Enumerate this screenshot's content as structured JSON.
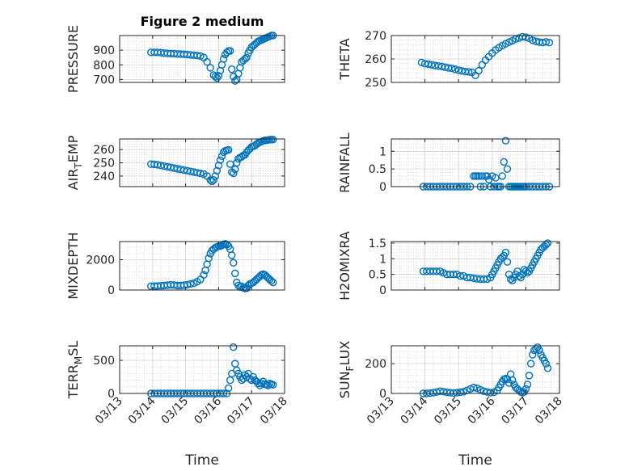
{
  "chart_data": [
    {
      "type": "scatter",
      "title": "Figure 2 medium",
      "ylabel": "PRESSURE",
      "ylabel_sub": null,
      "ylim": [
        680,
        1000
      ],
      "yticks": [
        700,
        800,
        900
      ],
      "ytick_labels": [
        "700",
        "800",
        "900"
      ],
      "xlim": [
        0,
        5
      ],
      "xticks": [
        0,
        1,
        2,
        3,
        4,
        5
      ],
      "xtick_labels": [
        "03/13",
        "03/14",
        "03/15",
        "03/16",
        "03/17",
        "03/18"
      ],
      "xlabel": "",
      "show_xticklabels": false,
      "x": [
        0.95,
        1.05,
        1.15,
        1.25,
        1.35,
        1.45,
        1.55,
        1.65,
        1.75,
        1.85,
        1.95,
        2.05,
        2.15,
        2.25,
        2.35,
        2.45,
        2.55,
        2.65,
        2.75,
        2.85,
        2.9,
        2.95,
        3.0,
        3.05,
        3.1,
        3.15,
        3.2,
        3.25,
        3.3,
        3.35,
        3.4,
        3.45,
        3.5,
        3.55,
        3.6,
        3.65,
        3.7,
        3.75,
        3.8,
        3.85,
        3.9,
        3.95,
        4.0,
        4.05,
        4.1,
        4.15,
        4.2,
        4.25,
        4.3,
        4.35,
        4.4,
        4.45,
        4.5,
        4.55,
        4.6,
        4.65
      ],
      "y": [
        885,
        885,
        885,
        883,
        880,
        878,
        877,
        876,
        874,
        873,
        872,
        870,
        868,
        866,
        864,
        860,
        850,
        820,
        780,
        730,
        720,
        710,
        725,
        760,
        800,
        840,
        870,
        885,
        895,
        895,
        770,
        720,
        690,
        700,
        740,
        780,
        820,
        830,
        840,
        850,
        880,
        900,
        920,
        930,
        940,
        950,
        960,
        965,
        970,
        975,
        980,
        985,
        990,
        995,
        1000,
        1000
      ]
    },
    {
      "type": "scatter",
      "title": "",
      "ylabel": "THETA",
      "ylabel_sub": null,
      "ylim": [
        250,
        270
      ],
      "yticks": [
        250,
        260,
        270
      ],
      "ytick_labels": [
        "250",
        "260",
        "270"
      ],
      "xlim": [
        0,
        5
      ],
      "xticks": [
        0,
        1,
        2,
        3,
        4,
        5
      ],
      "xtick_labels": [
        "03/13",
        "03/14",
        "03/15",
        "03/16",
        "03/17",
        "03/18"
      ],
      "xlabel": "",
      "show_xticklabels": false,
      "x": [
        0.9,
        1.0,
        1.1,
        1.2,
        1.3,
        1.4,
        1.5,
        1.6,
        1.7,
        1.8,
        1.9,
        2.0,
        2.1,
        2.2,
        2.3,
        2.4,
        2.5,
        2.6,
        2.7,
        2.8,
        2.9,
        3.0,
        3.1,
        3.2,
        3.3,
        3.4,
        3.5,
        3.6,
        3.7,
        3.8,
        3.9,
        4.0,
        4.1,
        4.2,
        4.3,
        4.4,
        4.5,
        4.6,
        4.7
      ],
      "y": [
        258.5,
        258,
        257.8,
        257.5,
        257.2,
        257,
        256.8,
        256.5,
        256.2,
        256,
        255.6,
        255.2,
        254.9,
        254.6,
        254.5,
        254.3,
        253,
        255,
        257.5,
        259.5,
        261,
        262.5,
        263.8,
        264.8,
        265.7,
        266.5,
        267.2,
        267.8,
        268.5,
        269,
        269.5,
        269.3,
        268.8,
        268,
        267.5,
        267.2,
        267,
        267.3,
        267
      ]
    },
    {
      "type": "scatter",
      "title": "",
      "ylabel": "AIR",
      "ylabel_sub": "T",
      "ylabel_rest": "EMP",
      "ylim": [
        232,
        268
      ],
      "yticks": [
        240,
        250,
        260
      ],
      "ytick_labels": [
        "240",
        "250",
        "260"
      ],
      "xlim": [
        0,
        5
      ],
      "xticks": [
        0,
        1,
        2,
        3,
        4,
        5
      ],
      "xtick_labels": [
        "03/13",
        "03/14",
        "03/15",
        "03/16",
        "03/17",
        "03/18"
      ],
      "xlabel": "",
      "show_xticklabels": false,
      "x": [
        0.95,
        1.05,
        1.15,
        1.25,
        1.35,
        1.45,
        1.55,
        1.65,
        1.75,
        1.85,
        1.95,
        2.05,
        2.15,
        2.25,
        2.35,
        2.45,
        2.55,
        2.65,
        2.75,
        2.8,
        2.85,
        2.9,
        2.95,
        3.0,
        3.05,
        3.1,
        3.15,
        3.2,
        3.25,
        3.3,
        3.35,
        3.4,
        3.45,
        3.5,
        3.55,
        3.6,
        3.65,
        3.7,
        3.75,
        3.8,
        3.85,
        3.9,
        3.95,
        4.0,
        4.05,
        4.1,
        4.15,
        4.2,
        4.25,
        4.3,
        4.35,
        4.4,
        4.45,
        4.5,
        4.55,
        4.6,
        4.65
      ],
      "y": [
        249,
        248.8,
        248.5,
        248,
        247.5,
        247,
        246.5,
        246,
        245.5,
        245,
        244.5,
        244,
        243.5,
        243,
        242.5,
        242,
        241.5,
        240,
        237,
        236,
        237,
        240,
        244,
        248,
        252,
        255,
        258,
        259,
        259.5,
        259.8,
        249,
        243,
        242,
        245,
        250,
        253,
        254,
        254.5,
        255.5,
        256,
        258,
        259.5,
        260.5,
        262,
        262.5,
        263,
        264,
        265,
        265.5,
        266,
        266.5,
        267,
        267,
        267.2,
        267.5,
        267.5,
        267.5
      ]
    },
    {
      "type": "scatter",
      "title": "",
      "ylabel": "RAINFALL",
      "ylabel_sub": null,
      "ylim": [
        0,
        1.35
      ],
      "yticks": [
        0,
        0.5,
        1
      ],
      "ytick_labels": [
        "0",
        "0.5",
        "1"
      ],
      "xlim": [
        0,
        5
      ],
      "xticks": [
        0,
        1,
        2,
        3,
        4,
        5
      ],
      "xtick_labels": [
        "03/13",
        "03/14",
        "03/15",
        "03/16",
        "03/17",
        "03/18"
      ],
      "xlabel": "",
      "show_xticklabels": false,
      "x": [
        0.95,
        1.05,
        1.15,
        1.25,
        1.35,
        1.45,
        1.55,
        1.65,
        1.75,
        1.85,
        1.95,
        2.05,
        2.15,
        2.25,
        2.35,
        2.45,
        2.5,
        2.55,
        2.6,
        2.65,
        2.7,
        2.75,
        2.8,
        2.85,
        2.9,
        2.95,
        3.0,
        3.05,
        3.1,
        3.15,
        3.2,
        3.25,
        3.3,
        3.35,
        3.4,
        3.45,
        3.5,
        3.55,
        3.6,
        3.65,
        3.7,
        3.75,
        3.8,
        3.85,
        3.9,
        3.95,
        4.0,
        4.1,
        4.2,
        4.3,
        4.4,
        4.5,
        4.6,
        4.7
      ],
      "y": [
        0,
        0,
        0,
        0,
        0,
        0,
        0,
        0,
        0,
        0,
        0,
        0,
        0,
        0,
        0,
        0.3,
        0.3,
        0.3,
        0.3,
        0,
        0.3,
        0,
        0.3,
        0.3,
        0.2,
        0,
        0.3,
        0,
        0.25,
        0,
        0,
        0,
        0.3,
        0.7,
        1.3,
        0.5,
        0,
        0,
        0,
        0,
        0,
        0,
        0,
        0,
        0,
        0,
        0,
        0,
        0,
        0,
        0,
        0,
        0,
        0
      ]
    },
    {
      "type": "scatter",
      "title": "",
      "ylabel": "MIXDEPTH",
      "ylabel_sub": null,
      "ylim": [
        0,
        3200
      ],
      "yticks": [
        0,
        2000
      ],
      "ytick_labels": [
        "0",
        "2000"
      ],
      "xlim": [
        0,
        5
      ],
      "xticks": [
        0,
        1,
        2,
        3,
        4,
        5
      ],
      "xtick_labels": [
        "03/13",
        "03/14",
        "03/15",
        "03/16",
        "03/17",
        "03/18"
      ],
      "xlabel": "",
      "show_xticklabels": false,
      "x": [
        0.95,
        1.05,
        1.15,
        1.25,
        1.35,
        1.45,
        1.55,
        1.65,
        1.75,
        1.85,
        1.95,
        2.05,
        2.15,
        2.25,
        2.35,
        2.45,
        2.55,
        2.6,
        2.65,
        2.7,
        2.75,
        2.8,
        2.85,
        2.9,
        2.95,
        3.0,
        3.05,
        3.1,
        3.15,
        3.2,
        3.25,
        3.3,
        3.35,
        3.4,
        3.45,
        3.5,
        3.55,
        3.6,
        3.65,
        3.7,
        3.75,
        3.8,
        3.85,
        3.9,
        3.95,
        4.0,
        4.05,
        4.1,
        4.15,
        4.2,
        4.25,
        4.3,
        4.35,
        4.4,
        4.45,
        4.5,
        4.55,
        4.6,
        4.65
      ],
      "y": [
        250,
        260,
        270,
        280,
        300,
        320,
        350,
        330,
        300,
        300,
        320,
        350,
        400,
        450,
        550,
        700,
        1000,
        1300,
        1700,
        2100,
        2400,
        2600,
        2700,
        2800,
        2850,
        2900,
        2900,
        2950,
        3000,
        3050,
        3000,
        2900,
        2700,
        2300,
        1800,
        1100,
        500,
        300,
        200,
        250,
        150,
        100,
        120,
        300,
        400,
        450,
        500,
        600,
        700,
        800,
        900,
        1000,
        1050,
        1000,
        900,
        800,
        700,
        600,
        500
      ]
    },
    {
      "type": "scatter",
      "title": "",
      "ylabel": "H2OMIXRA",
      "ylabel_sub": null,
      "ylim": [
        0,
        1.55
      ],
      "yticks": [
        0,
        0.5,
        1,
        1.5
      ],
      "ytick_labels": [
        "0",
        "0.5",
        "1",
        "1.5"
      ],
      "xlim": [
        0,
        5
      ],
      "xticks": [
        0,
        1,
        2,
        3,
        4,
        5
      ],
      "xtick_labels": [
        "03/13",
        "03/14",
        "03/15",
        "03/16",
        "03/17",
        "03/18"
      ],
      "xlabel": "",
      "show_xticklabels": false,
      "x": [
        0.95,
        1.05,
        1.15,
        1.25,
        1.35,
        1.45,
        1.55,
        1.65,
        1.75,
        1.85,
        1.95,
        2.05,
        2.15,
        2.25,
        2.35,
        2.45,
        2.55,
        2.65,
        2.75,
        2.85,
        2.95,
        3.0,
        3.05,
        3.1,
        3.15,
        3.2,
        3.25,
        3.3,
        3.35,
        3.4,
        3.45,
        3.5,
        3.55,
        3.6,
        3.65,
        3.7,
        3.75,
        3.8,
        3.85,
        3.9,
        3.95,
        4.0,
        4.05,
        4.1,
        4.15,
        4.2,
        4.25,
        4.3,
        4.35,
        4.4,
        4.45,
        4.5,
        4.55,
        4.6,
        4.65
      ],
      "y": [
        0.6,
        0.6,
        0.6,
        0.6,
        0.6,
        0.6,
        0.55,
        0.5,
        0.5,
        0.5,
        0.5,
        0.45,
        0.45,
        0.4,
        0.4,
        0.38,
        0.36,
        0.35,
        0.35,
        0.35,
        0.4,
        0.5,
        0.6,
        0.7,
        0.8,
        0.9,
        1.0,
        1.05,
        1.1,
        1.2,
        0.9,
        0.5,
        0.35,
        0.3,
        0.4,
        0.5,
        0.6,
        0.45,
        0.4,
        0.5,
        0.65,
        0.6,
        0.55,
        0.6,
        0.7,
        0.8,
        0.9,
        1.0,
        1.1,
        1.2,
        1.3,
        1.35,
        1.4,
        1.45,
        1.5
      ]
    },
    {
      "type": "scatter",
      "title": "",
      "ylabel": "TERR",
      "ylabel_sub": "M",
      "ylabel_rest": "SL",
      "ylim": [
        0,
        720
      ],
      "yticks": [
        0,
        500
      ],
      "ytick_labels": [
        "0",
        "500"
      ],
      "xlim": [
        0,
        5
      ],
      "xticks": [
        0,
        1,
        2,
        3,
        4,
        5
      ],
      "xtick_labels": [
        "03/13",
        "03/14",
        "03/15",
        "03/16",
        "03/17",
        "03/18"
      ],
      "xlabel": "Time",
      "show_xticklabels": true,
      "x": [
        0.95,
        1.05,
        1.15,
        1.25,
        1.35,
        1.45,
        1.55,
        1.65,
        1.75,
        1.85,
        1.95,
        2.05,
        2.15,
        2.25,
        2.35,
        2.45,
        2.55,
        2.65,
        2.75,
        2.85,
        2.95,
        3.05,
        3.15,
        3.25,
        3.3,
        3.35,
        3.4,
        3.45,
        3.5,
        3.55,
        3.6,
        3.65,
        3.7,
        3.75,
        3.8,
        3.85,
        3.9,
        3.95,
        4.0,
        4.05,
        4.1,
        4.15,
        4.2,
        4.25,
        4.3,
        4.35,
        4.4,
        4.45,
        4.5,
        4.55,
        4.6,
        4.65
      ],
      "y": [
        0,
        0,
        0,
        0,
        0,
        0,
        0,
        0,
        0,
        0,
        0,
        0,
        0,
        0,
        0,
        0,
        0,
        0,
        0,
        0,
        0,
        0,
        0,
        0,
        80,
        200,
        300,
        700,
        450,
        350,
        300,
        250,
        200,
        220,
        280,
        250,
        300,
        220,
        200,
        250,
        200,
        180,
        150,
        120,
        150,
        180,
        140,
        130,
        120,
        150,
        140,
        130
      ]
    },
    {
      "type": "scatter",
      "title": "",
      "ylabel": "SUN",
      "ylabel_sub": "F",
      "ylabel_rest": "LUX",
      "ylim": [
        0,
        320
      ],
      "yticks": [
        0,
        200
      ],
      "ytick_labels": [
        "0",
        "200"
      ],
      "xlim": [
        0,
        5
      ],
      "xticks": [
        0,
        1,
        2,
        3,
        4,
        5
      ],
      "xtick_labels": [
        "03/13",
        "03/14",
        "03/15",
        "03/16",
        "03/17",
        "03/18"
      ],
      "xlabel": "Time",
      "show_xticklabels": true,
      "x": [
        0.95,
        1.05,
        1.15,
        1.25,
        1.35,
        1.45,
        1.55,
        1.65,
        1.75,
        1.85,
        1.95,
        2.05,
        2.15,
        2.25,
        2.35,
        2.45,
        2.55,
        2.65,
        2.75,
        2.85,
        2.95,
        3.05,
        3.15,
        3.2,
        3.25,
        3.3,
        3.35,
        3.4,
        3.45,
        3.5,
        3.55,
        3.6,
        3.65,
        3.7,
        3.75,
        3.8,
        3.85,
        3.9,
        3.95,
        4.0,
        4.05,
        4.1,
        4.15,
        4.2,
        4.25,
        4.3,
        4.35,
        4.4,
        4.45,
        4.5,
        4.55,
        4.6,
        4.65
      ],
      "y": [
        0,
        0,
        2,
        5,
        10,
        15,
        12,
        8,
        5,
        3,
        5,
        8,
        12,
        20,
        30,
        40,
        35,
        25,
        15,
        10,
        5,
        8,
        20,
        40,
        60,
        80,
        95,
        100,
        95,
        70,
        130,
        90,
        60,
        40,
        30,
        20,
        10,
        5,
        10,
        30,
        60,
        120,
        200,
        260,
        290,
        300,
        310,
        290,
        260,
        240,
        220,
        200,
        170
      ]
    }
  ]
}
